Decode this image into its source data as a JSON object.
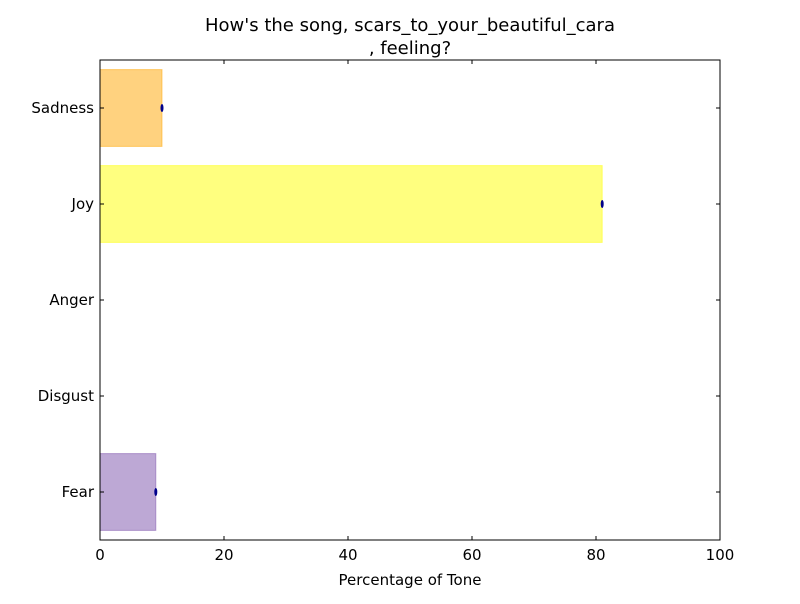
{
  "chart_data": {
    "type": "bar",
    "orientation": "horizontal",
    "title": [
      "How's the song, scars_to_your_beautiful_cara",
      ", feeling?"
    ],
    "xlabel": "Percentage of Tone",
    "ylabel": "",
    "categories": [
      "Fear",
      "Disgust",
      "Anger",
      "Joy",
      "Sadness"
    ],
    "values": [
      9,
      0,
      0,
      81,
      10
    ],
    "colors": [
      "#7b52ab",
      "#000000",
      "#000000",
      "#ffff00",
      "#ffa500"
    ],
    "bar_opacity": 0.5,
    "marker_color": "#00008b",
    "xlim": [
      0,
      100
    ],
    "xticks": [
      0,
      20,
      40,
      60,
      80,
      100
    ],
    "grid": false,
    "legend": "none"
  }
}
